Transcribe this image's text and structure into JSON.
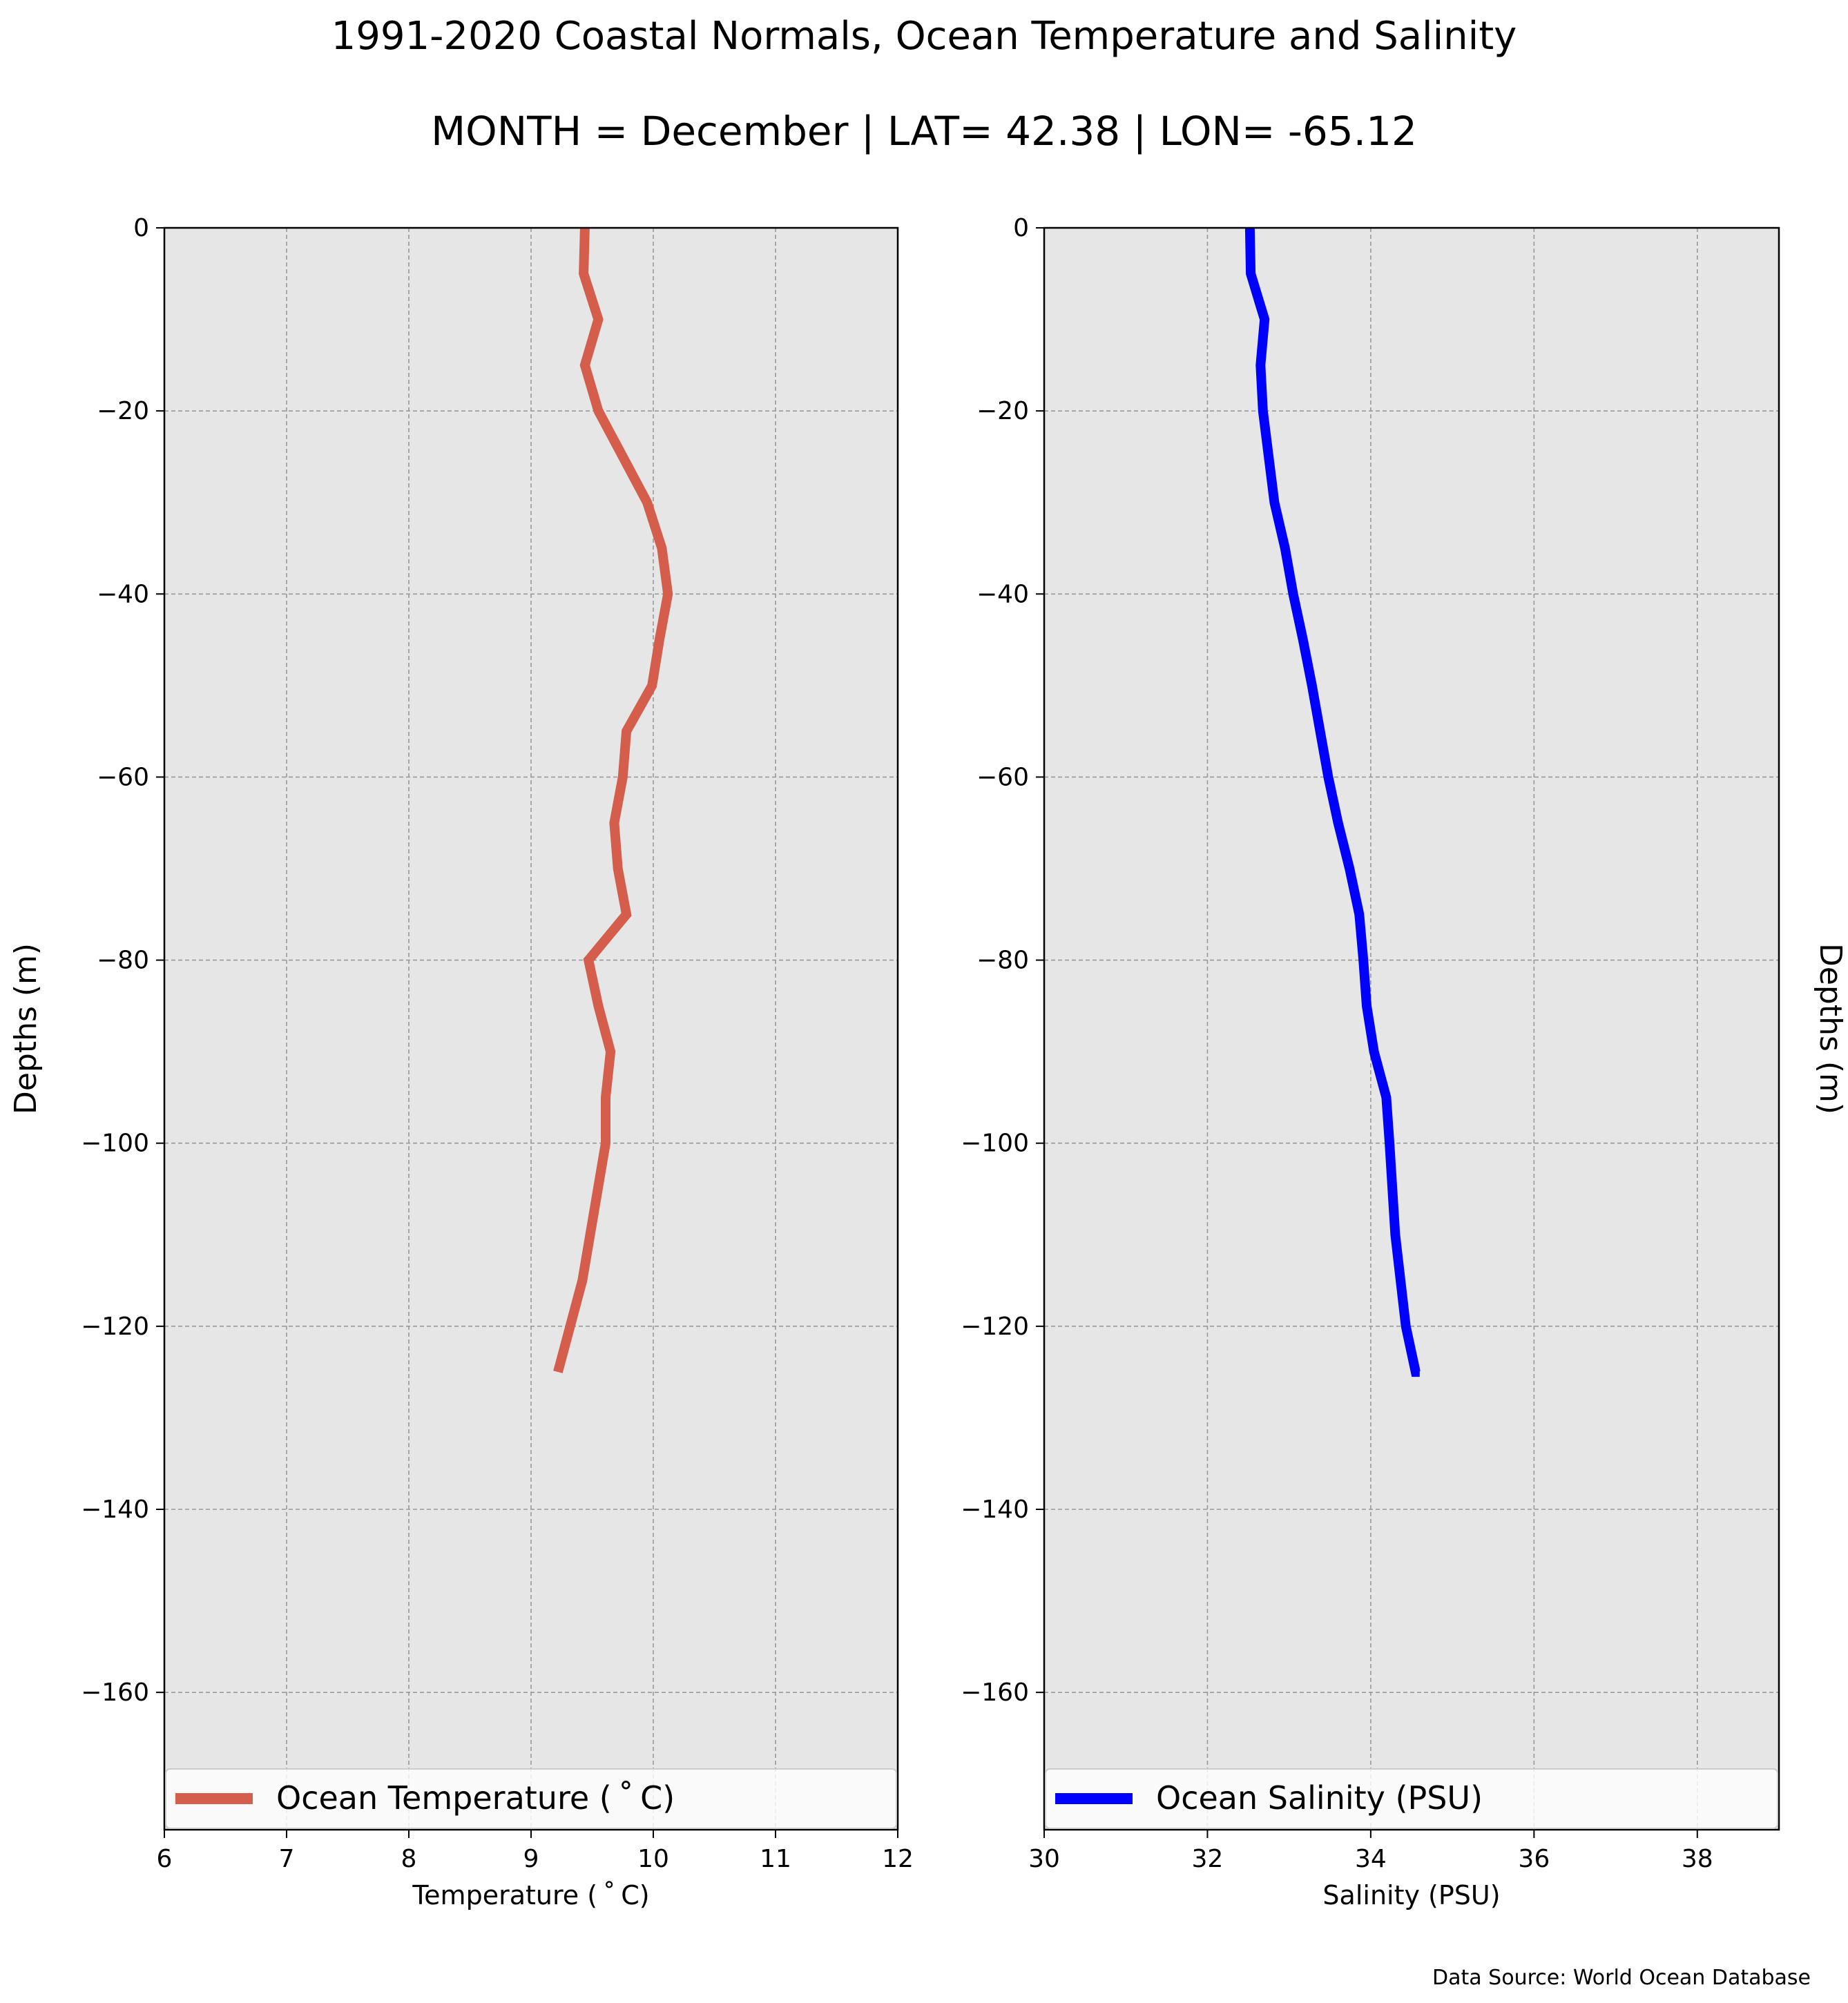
{
  "title": "1991-2020 Coastal Normals, Ocean Temperature and Salinity",
  "subtitle": "MONTH = December | LAT= 42.38 | LON= -65.12",
  "source_note": "Data Source: World Ocean Database",
  "colors": {
    "plot_background": "#e6e6e6",
    "grid": "#999999",
    "temperature_line": "#d45d4c",
    "salinity_line": "#0000ff"
  },
  "chart_data": [
    {
      "type": "line",
      "xlabel": "Temperature ($^\\circ$C)",
      "xlabel_display": "Temperature ( ˚ C)",
      "ylabel": "Depths (m)",
      "xlim": [
        6,
        12
      ],
      "ylim": [
        -175,
        0
      ],
      "xticks": [
        6,
        7,
        8,
        9,
        10,
        11,
        12
      ],
      "yticks": [
        0,
        -20,
        -40,
        -60,
        -80,
        -100,
        -120,
        -140,
        -160
      ],
      "ytick_labels": [
        "0",
        "−20",
        "−40",
        "−60",
        "−80",
        "−100",
        "−120",
        "−140",
        "−160"
      ],
      "grid": true,
      "legend_position": "bottom",
      "series": [
        {
          "name": "Ocean Temperature ( ˚ C)",
          "color": "#d45d4c",
          "x": [
            9.44,
            9.43,
            9.55,
            9.44,
            9.55,
            9.75,
            9.95,
            10.07,
            10.12,
            10.05,
            9.99,
            9.78,
            9.75,
            9.68,
            9.71,
            9.78,
            9.47,
            9.55,
            9.65,
            9.61,
            9.61,
            9.42,
            9.22
          ],
          "y": [
            0,
            -5,
            -10,
            -15,
            -20,
            -25,
            -30,
            -35,
            -40,
            -45,
            -50,
            -55,
            -60,
            -65,
            -70,
            -75,
            -80,
            -85,
            -90,
            -95,
            -100,
            -115,
            -125
          ]
        }
      ]
    },
    {
      "type": "line",
      "xlabel": "Salinity (PSU)",
      "ylabel": "Depths (m)",
      "xlim": [
        30,
        39
      ],
      "ylim": [
        -175,
        0
      ],
      "xticks": [
        30,
        32,
        34,
        36,
        38
      ],
      "yticks": [
        0,
        -20,
        -40,
        -60,
        -80,
        -100,
        -120,
        -140,
        -160
      ],
      "ytick_labels": [
        "0",
        "−20",
        "−40",
        "−60",
        "−80",
        "−100",
        "−120",
        "−140",
        "−160"
      ],
      "grid": true,
      "legend_position": "bottom",
      "series": [
        {
          "name": "Ocean Salinity (PSU)",
          "color": "#0000ff",
          "x": [
            32.52,
            32.53,
            32.7,
            32.65,
            32.68,
            32.75,
            32.82,
            32.95,
            33.05,
            33.17,
            33.28,
            33.38,
            33.48,
            33.6,
            33.74,
            33.86,
            33.91,
            33.95,
            34.04,
            34.19,
            34.23,
            34.3,
            34.43,
            34.55,
            34.6
          ],
          "y": [
            0,
            -5,
            -10,
            -15,
            -20,
            -25,
            -30,
            -35,
            -40,
            -45,
            -50,
            -55,
            -60,
            -65,
            -70,
            -75,
            -80,
            -85,
            -90,
            -95,
            -100,
            -110,
            -120,
            -125,
            -125
          ]
        }
      ]
    }
  ]
}
